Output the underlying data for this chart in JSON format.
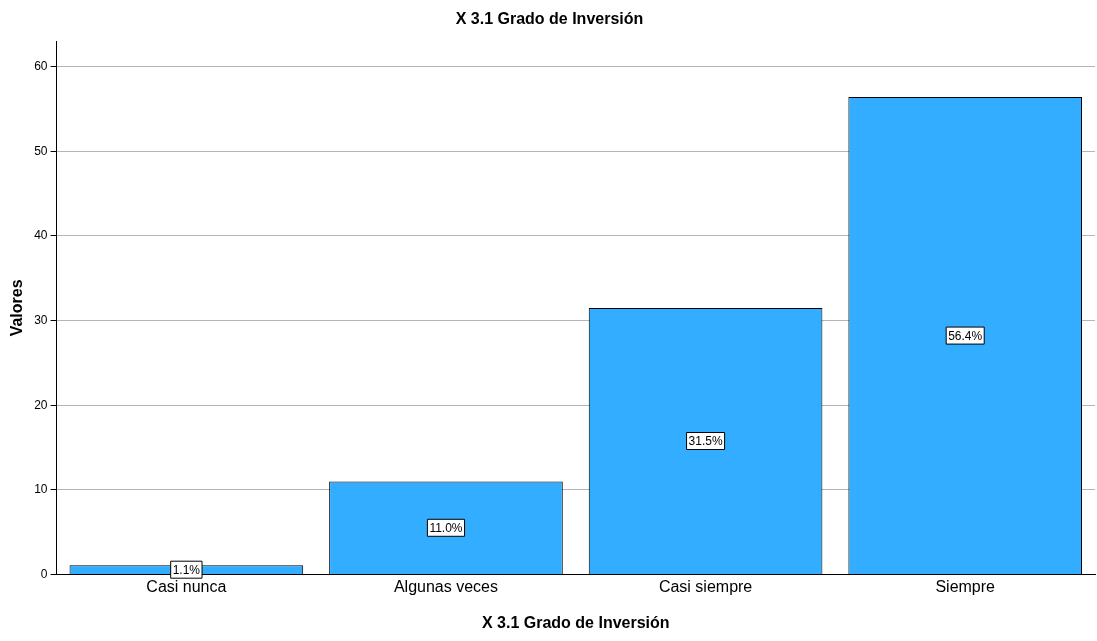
{
  "chart_data": {
    "type": "bar",
    "title": "X 3.1 Grado de Inversión",
    "xlabel": "X 3.1 Grado de Inversión",
    "ylabel": "Valores",
    "categories": [
      "Casi nunca",
      "Algunas veces",
      "Casi siempre",
      "Siempre"
    ],
    "values": [
      1.1,
      11.0,
      31.5,
      56.4
    ],
    "value_labels": [
      "1.1%",
      "11.0%",
      "31.5%",
      "56.4%"
    ],
    "color": "#33adff",
    "ylim": [
      0,
      63
    ],
    "yticks": [
      0,
      10,
      20,
      30,
      40,
      50,
      60
    ],
    "grid": "y",
    "legend": false
  }
}
